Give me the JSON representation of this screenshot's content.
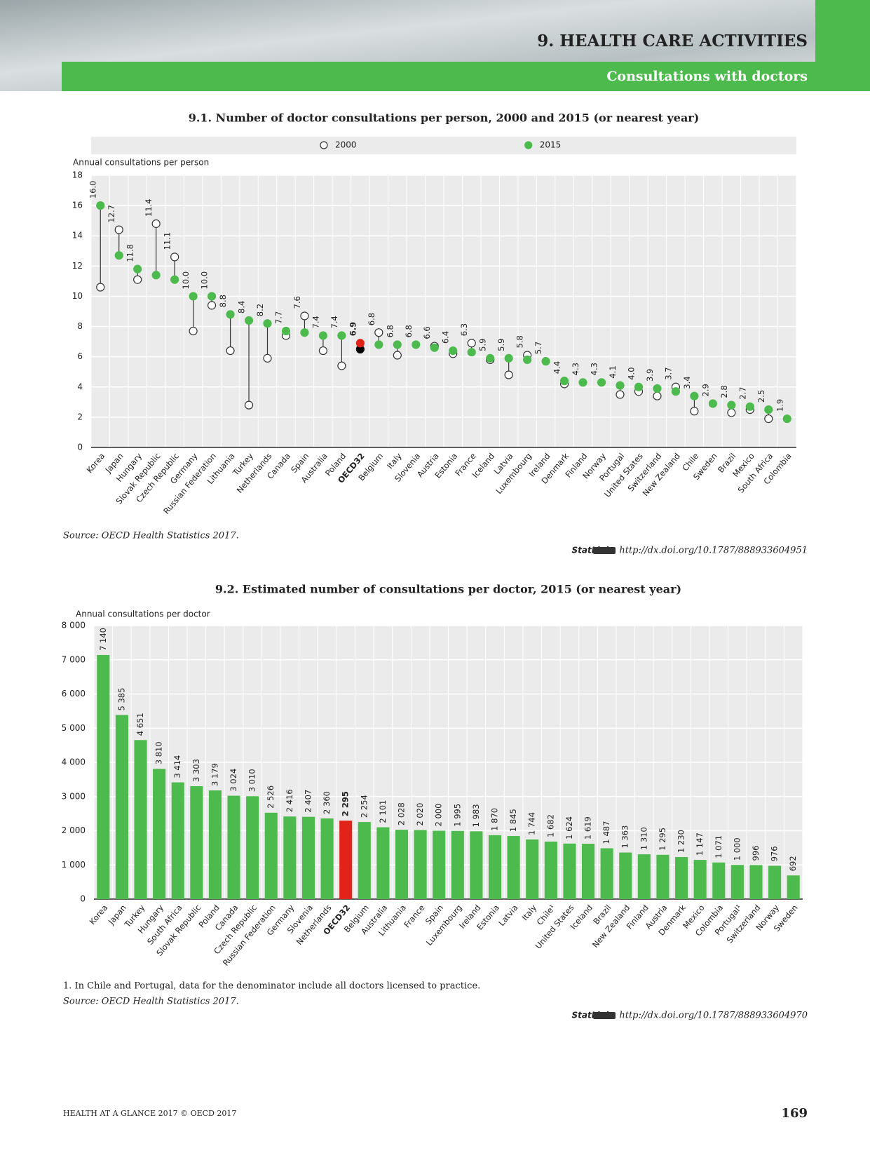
{
  "header": {
    "chapter": "9. HEALTH CARE ACTIVITIES",
    "section": "Consultations with doctors"
  },
  "chart_data": [
    {
      "type": "dot",
      "title": "9.1. Number of doctor consultations per person, 2000 and 2015 (or nearest year)",
      "y_label": "Annual consultations per person",
      "categories": [
        "Korea",
        "Japan",
        "Hungary",
        "Slovak Republic",
        "Czech Republic",
        "Germany",
        "Russian Federation",
        "Lithuania",
        "Turkey",
        "Netherlands",
        "Canada",
        "Spain",
        "Australia",
        "Poland",
        "OECD32",
        "Belgium",
        "Italy",
        "Slovenia",
        "Austria",
        "Estonia",
        "France",
        "Iceland",
        "Latvia",
        "Luxembourg",
        "Ireland",
        "Denmark",
        "Finland",
        "Norway",
        "Portugal",
        "United States",
        "Switzerland",
        "New Zealand",
        "Chile",
        "Sweden",
        "Brazil",
        "Mexico",
        "South Africa",
        "Colombia"
      ],
      "series": [
        {
          "name": "2000",
          "color": "#ffffff",
          "stroke": "#333333",
          "values": [
            10.6,
            14.4,
            11.1,
            14.8,
            12.6,
            7.7,
            9.4,
            6.4,
            2.8,
            5.9,
            7.4,
            8.7,
            6.4,
            5.4,
            6.5,
            7.6,
            6.1,
            null,
            6.7,
            6.2,
            6.9,
            5.8,
            4.8,
            6.1,
            null,
            4.2,
            null,
            null,
            3.5,
            3.7,
            3.4,
            4.0,
            2.4,
            null,
            2.3,
            2.5,
            1.9,
            null
          ]
        },
        {
          "name": "2015",
          "color": "#4dba4d",
          "values": [
            16.0,
            12.7,
            11.8,
            11.4,
            11.1,
            10.0,
            10.0,
            8.8,
            8.4,
            8.2,
            7.7,
            7.6,
            7.4,
            7.4,
            6.9,
            6.8,
            6.8,
            6.8,
            6.6,
            6.4,
            6.3,
            5.9,
            5.9,
            5.8,
            5.7,
            4.4,
            4.3,
            4.3,
            4.1,
            4.0,
            3.9,
            3.7,
            3.4,
            2.9,
            2.8,
            2.7,
            2.5,
            1.9
          ],
          "value_labels": [
            "16.0",
            "12.7",
            "11.8",
            "11.4",
            "11.1",
            "10.0",
            "10.0",
            "8.8",
            "8.4",
            "8.2",
            "7.7",
            "7.6",
            "7.4",
            "7.4",
            "6.9",
            "6.8",
            "6.8",
            "6.8",
            "6.6",
            "6.4",
            "6.3",
            "5.9",
            "5.9",
            "5.8",
            "5.7",
            "4.4",
            "4.3",
            "4.3",
            "4.1",
            "4.0",
            "3.9",
            "3.7",
            "3.4",
            "2.9",
            "2.8",
            "2.7",
            "2.5",
            "1.9"
          ]
        }
      ],
      "highlight": "OECD32",
      "highlight_colors": [
        "#000000",
        "#e2231a"
      ],
      "ylim": [
        0,
        18
      ],
      "yticks": [
        0,
        2,
        4,
        6,
        8,
        10,
        12,
        14,
        16,
        18
      ],
      "grid": true,
      "legend": "top",
      "source": "Source: OECD Health Statistics 2017.",
      "statlink": "StatLink",
      "url": "http://dx.doi.org/10.1787/888933604951"
    },
    {
      "type": "bar",
      "title": "9.2. Estimated number of consultations per doctor, 2015 (or nearest year)",
      "y_label": "Annual consultations per doctor",
      "categories": [
        "Korea",
        "Japan",
        "Turkey",
        "Hungary",
        "South Africa",
        "Slovak Republic",
        "Poland",
        "Canada",
        "Czech Republic",
        "Russian Federation",
        "Germany",
        "Slovenia",
        "Netherlands",
        "OECD32",
        "Belgium",
        "Australia",
        "Lithuania",
        "France",
        "Spain",
        "Luxembourg",
        "Ireland",
        "Estonia",
        "Latvia",
        "Italy",
        "Chile¹",
        "United States",
        "Iceland",
        "Brazil",
        "New Zealand",
        "Finland",
        "Austria",
        "Denmark",
        "Mexico",
        "Colombia",
        "Portugal¹",
        "Switzerland",
        "Norway",
        "Sweden"
      ],
      "values": [
        7140,
        5385,
        4651,
        3810,
        3414,
        3303,
        3179,
        3024,
        3010,
        2526,
        2416,
        2407,
        2360,
        2295,
        2254,
        2101,
        2028,
        2020,
        2000,
        1995,
        1983,
        1870,
        1845,
        1744,
        1682,
        1624,
        1619,
        1487,
        1363,
        1310,
        1295,
        1230,
        1147,
        1071,
        1000,
        996,
        976,
        692
      ],
      "value_labels": [
        "7 140",
        "5 385",
        "4 651",
        "3 810",
        "3 414",
        "3 303",
        "3 179",
        "3 024",
        "3 010",
        "2 526",
        "2 416",
        "2 407",
        "2 360",
        "2 295",
        "2 254",
        "2 101",
        "2 028",
        "2 020",
        "2 000",
        "1 995",
        "1 983",
        "1 870",
        "1 845",
        "1 744",
        "1 682",
        "1 624",
        "1 619",
        "1 487",
        "1 363",
        "1 310",
        "1 295",
        "1 230",
        "1 147",
        "1 071",
        "1 000",
        "996",
        "976",
        "692"
      ],
      "color": "#4dba4d",
      "highlight": "OECD32",
      "highlight_color": "#e2231a",
      "ylim": [
        0,
        8000
      ],
      "yticks": [
        0,
        {
          "value": 1000,
          "label": "1 000"
        },
        {
          "value": 2000,
          "label": "2 000"
        },
        {
          "value": 3000,
          "label": "3 000"
        },
        {
          "value": 4000,
          "label": "4 000"
        },
        {
          "value": 5000,
          "label": "5 000"
        },
        {
          "value": 6000,
          "label": "6 000"
        },
        {
          "value": 7000,
          "label": "7 000"
        },
        {
          "value": 8000,
          "label": "8 000"
        }
      ],
      "grid": true,
      "note": "1. In Chile and Portugal, data for the denominator include all doctors licensed to practice.",
      "source": "Source: OECD Health Statistics 2017.",
      "statlink": "StatLink",
      "url": "http://dx.doi.org/10.1787/888933604970"
    }
  ],
  "footer": {
    "publication": "HEALTH AT A GLANCE 2017 © OECD 2017",
    "page": "169"
  }
}
